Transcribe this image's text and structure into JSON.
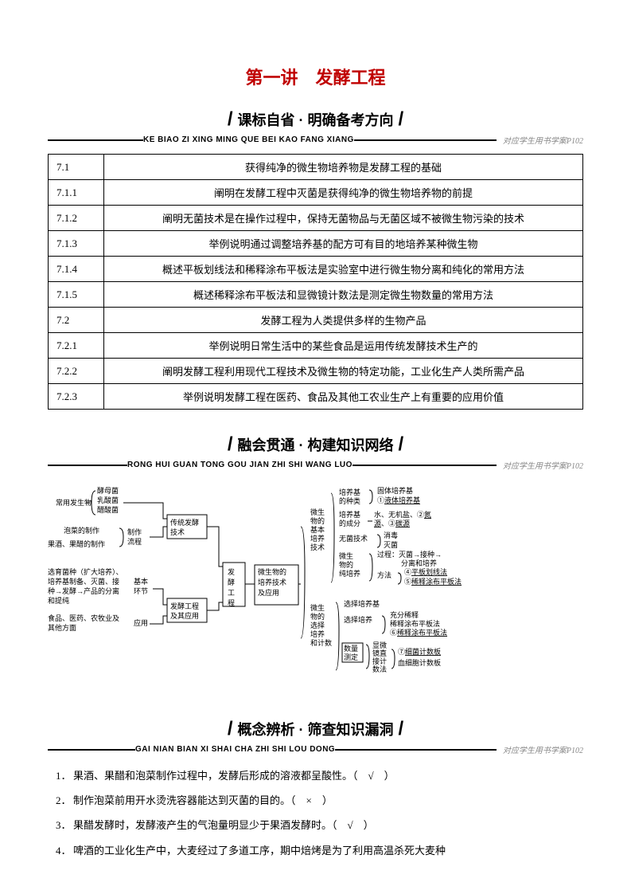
{
  "title": "第一讲　发酵工程",
  "sections": {
    "s1": {
      "title": "课标自省 · 明确备考方向",
      "pinyin": "KE BIAO ZI XING MING QUE BEI KAO FANG XIANG",
      "pageref": "对应学生用书学案P102"
    },
    "s2": {
      "title": "融会贯通 · 构建知识网络",
      "pinyin": "RONG HUI GUAN TONG GOU JIAN ZHI SHI WANG LUO",
      "pageref": "对应学生用书学案P102"
    },
    "s3": {
      "title": "概念辨析 · 筛查知识漏洞",
      "pinyin": "GAI NIAN BIAN XI SHAI CHA ZHI SHI LOU DONG",
      "pageref": "对应学生用书学案P102"
    }
  },
  "table": [
    {
      "code": "7.1",
      "desc": "获得纯净的微生物培养物是发酵工程的基础"
    },
    {
      "code": "7.1.1",
      "desc": "阐明在发酵工程中灭菌是获得纯净的微生物培养物的前提"
    },
    {
      "code": "7.1.2",
      "desc": "阐明无菌技术是在操作过程中，保持无菌物品与无菌区域不被微生物污染的技术"
    },
    {
      "code": "7.1.3",
      "desc": "举例说明通过调整培养基的配方可有目的地培养某种微生物"
    },
    {
      "code": "7.1.4",
      "desc": "概述平板划线法和稀释涂布平板法是实验室中进行微生物分离和纯化的常用方法"
    },
    {
      "code": "7.1.5",
      "desc": "概述稀释涂布平板法和显微镜计数法是测定微生物数量的常用方法"
    },
    {
      "code": "7.2",
      "desc": "发酵工程为人类提供多样的生物产品"
    },
    {
      "code": "7.2.1",
      "desc": "举例说明日常生活中的某些食品是运用传统发酵技术生产的"
    },
    {
      "code": "7.2.2",
      "desc": "阐明发酵工程利用现代工程技术及微生物的特定功能，工业化生产人类所需产品"
    },
    {
      "code": "7.2.3",
      "desc": "举例说明发酵工程在医药、食品及其他工农业生产上有重要的应用价值"
    }
  ],
  "diagram": {
    "central": "发酵工程",
    "left": {
      "top_group": "常用发生物",
      "items_top": [
        "酵母菌",
        "乳酸菌",
        "醋酸菌"
      ],
      "mid_items": [
        "泡菜的制作",
        "果酒、果醋的制作"
      ],
      "mid_label": "制作流程",
      "box1": "传统发酵技术",
      "box2": "发酵工程及其应用",
      "flow": "选育菌种（扩大培养）、培养基制备、灭菌、接种→发酵→产品的分离和提纯",
      "flow_label": "基本环节",
      "app": "食品、医药、农牧业及其他方面",
      "app_label": "应用"
    },
    "right": {
      "box3": "微生物的培养技术及应用",
      "group1": "微生物的基本培养技术",
      "g1_items": {
        "a": "培养基的种类",
        "a_sub": [
          "固体培养基",
          "①液体培养基"
        ],
        "b": "培养基的成分",
        "b_sub": "水、无机盐、②氮源、③碳源",
        "c": "无菌技术",
        "c_sub": [
          "消毒",
          "灭菌"
        ],
        "d": "微生物的纯培养",
        "d_sub1": "过程：灭菌→接种→分离和培养",
        "d_sub2": "方法",
        "d_methods": [
          "④平板划线法",
          "⑤稀释涂布平板法"
        ]
      },
      "group2": "微生物的选择培养和计数",
      "g2_items": {
        "a": "选择培养基",
        "b": "选择培养",
        "b_sub": [
          "充分稀释",
          "稀释涂布平板法",
          "⑥稀释涂布平板法"
        ],
        "c": "数量测定",
        "c_sub": "显微镜直接计数法",
        "c_sub2": [
          "⑦细菌计数板",
          "血细胞计数板"
        ]
      }
    }
  },
  "concepts": [
    {
      "n": "1．",
      "text": "果酒、果醋和泡菜制作过程中，发酵后形成的溶液都呈酸性。（　√　）"
    },
    {
      "n": "2．",
      "text": "制作泡菜前用开水烫洗容器能达到灭菌的目的。（　×　）"
    },
    {
      "n": "3．",
      "text": "果醋发酵时，发酵液产生的气泡量明显少于果酒发酵时。（　√　）"
    },
    {
      "n": "4．",
      "text": "啤酒的工业化生产中，大麦经过了多道工序，期中焙烤是为了利用高温杀死大麦种"
    }
  ]
}
